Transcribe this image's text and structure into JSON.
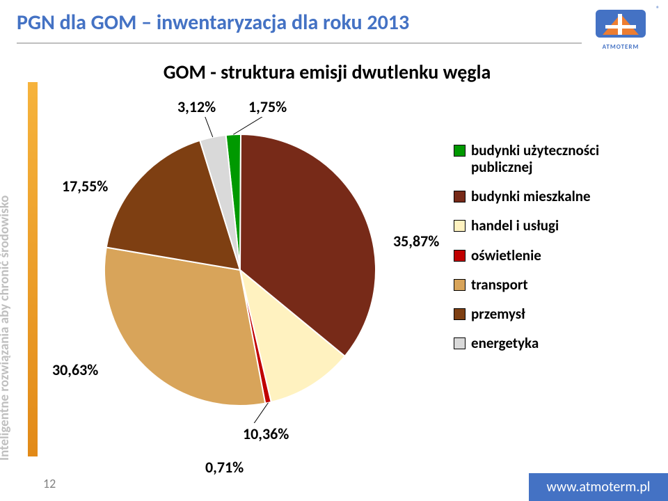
{
  "header": {
    "title": "PGN dla GOM – inwentaryzacja dla roku 2013",
    "title_color": "#4472c4",
    "title_fontsize": 30,
    "rule_color": "#bfbfbf"
  },
  "logo": {
    "brand_text": "ATMOTERM",
    "colors": {
      "blue": "#4472c4",
      "orange": "#ed7d31"
    }
  },
  "side_label": {
    "text": "Inteligentne rozwiązania aby chronić środowisko",
    "color": "#bfbfbf",
    "fontsize": 19
  },
  "orange_bar": {
    "gradient_from": "#f6b33c",
    "gradient_to": "#e28a18"
  },
  "chart": {
    "type": "pie",
    "title": "GOM - struktura emisji dwutlenku węgla",
    "title_fontsize": 28,
    "title_color": "#000000",
    "background_color": "#ffffff",
    "label_fontsize": 22,
    "label_color": "#000000",
    "stroke_color": "#ffffff",
    "stroke_width": 2,
    "slices": [
      {
        "key": "publ",
        "label": "budynki użyteczności publicznej",
        "value": 1.75,
        "pct_label": "1,75%",
        "color": "#009900"
      },
      {
        "key": "miesz",
        "label": "budynki mieszkalne",
        "value": 35.87,
        "pct_label": "35,87%",
        "color": "#772a18"
      },
      {
        "key": "handel",
        "label": "handel i usługi",
        "value": 10.36,
        "pct_label": "10,36%",
        "color": "#fff2c0"
      },
      {
        "key": "osw",
        "label": "oświetlenie",
        "value": 0.71,
        "pct_label": "0,71%",
        "color": "#c00000"
      },
      {
        "key": "trans",
        "label": "transport",
        "value": 30.63,
        "pct_label": "30,63%",
        "color": "#d8a45a"
      },
      {
        "key": "przem",
        "label": "przemysł",
        "value": 17.55,
        "pct_label": "17,55%",
        "color": "#7e3f12"
      },
      {
        "key": "energ",
        "label": "energetyka",
        "value": 3.12,
        "pct_label": "3,12%",
        "color": "#d9d9d9"
      }
    ],
    "start_angle_deg": -96,
    "radius": 195,
    "leader_color": "#000000"
  },
  "legend": {
    "fontsize": 21,
    "border_color": "#000000"
  },
  "page_number": "12",
  "footer": {
    "text": "www.atmoterm.pl",
    "bg": "#4472c4",
    "color": "#ffffff"
  }
}
